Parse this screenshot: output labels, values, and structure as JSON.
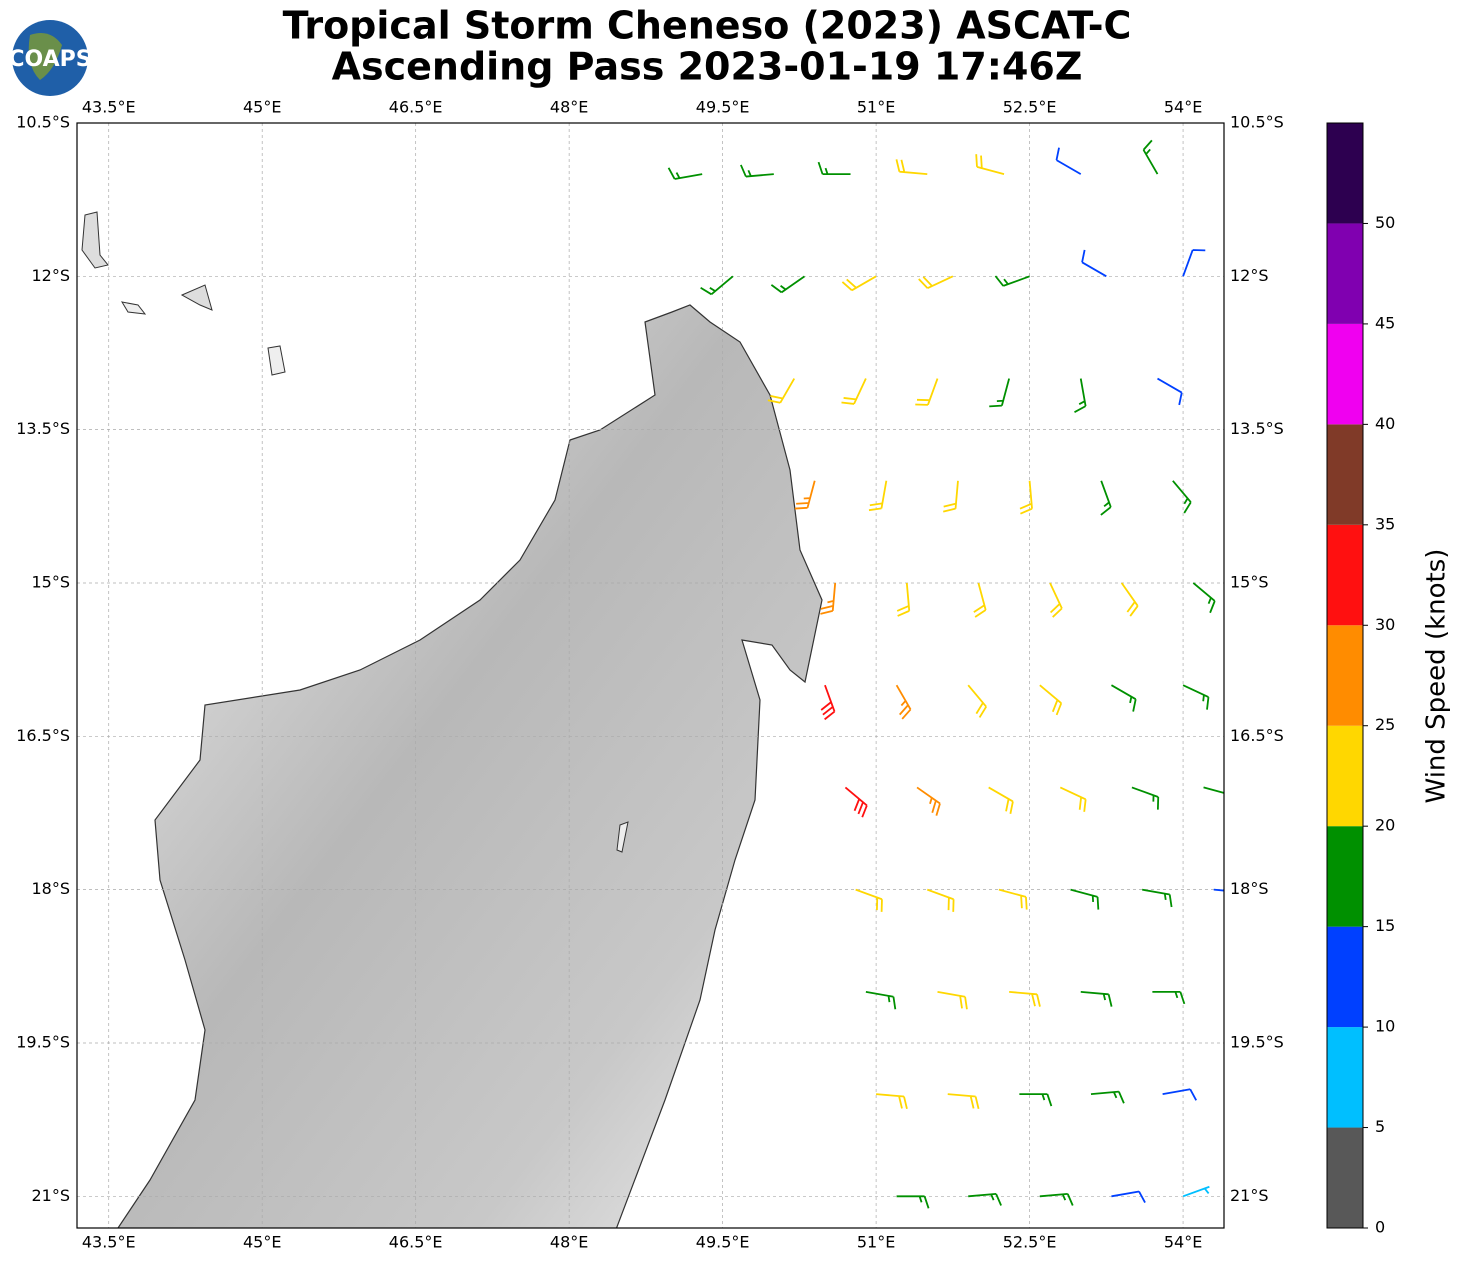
{
  "chart_data": {
    "type": "barbs",
    "logo": "COAPS",
    "title": [
      "Tropical Storm Cheneso (2023) ASCAT-C",
      "Ascending Pass 2023-01-19 17:46Z"
    ],
    "xlim": [
      43.19,
      54.4
    ],
    "ylim": [
      -21.31,
      -10.5
    ],
    "grid": true,
    "xticks": [
      {
        "value": 43.5,
        "label": "43.5°E"
      },
      {
        "value": 45,
        "label": "45°E"
      },
      {
        "value": 46.5,
        "label": "46.5°E"
      },
      {
        "value": 48,
        "label": "48°E"
      },
      {
        "value": 49.5,
        "label": "49.5°E"
      },
      {
        "value": 51,
        "label": "51°E"
      },
      {
        "value": 52.5,
        "label": "52.5°E"
      },
      {
        "value": 54,
        "label": "54°E"
      }
    ],
    "yticks": [
      {
        "value": -10.5,
        "label": "10.5°S"
      },
      {
        "value": -12,
        "label": "12°S"
      },
      {
        "value": -13.5,
        "label": "13.5°S"
      },
      {
        "value": -15,
        "label": "15°S"
      },
      {
        "value": -16.5,
        "label": "16.5°S"
      },
      {
        "value": -18,
        "label": "18°S"
      },
      {
        "value": -19.5,
        "label": "19.5°S"
      },
      {
        "value": -21,
        "label": "21°S"
      }
    ],
    "barbs": {
      "lon": [
        49.3,
        50.0,
        50.75,
        51.5,
        52.25,
        53.0,
        53.75,
        49.6,
        50.3,
        51.0,
        51.75,
        52.5,
        53.25,
        54.0,
        50.2,
        50.9,
        51.6,
        52.3,
        53.0,
        53.75,
        50.4,
        51.1,
        51.8,
        52.5,
        53.2,
        53.9,
        50.6,
        51.3,
        52.0,
        52.7,
        53.4,
        54.1,
        50.5,
        51.2,
        51.9,
        52.6,
        53.3,
        54.0,
        50.7,
        51.4,
        52.1,
        52.8,
        53.5,
        54.2,
        50.8,
        51.5,
        52.2,
        52.9,
        53.6,
        54.3,
        50.9,
        51.6,
        52.3,
        53.0,
        53.7,
        51.0,
        51.7,
        52.4,
        53.1,
        53.8,
        51.2,
        51.9,
        52.6,
        53.3,
        54.0
      ],
      "lat": [
        -11,
        -11,
        -11,
        -11,
        -11,
        -11,
        -11,
        -12,
        -12,
        -12,
        -12,
        -12,
        -12,
        -12,
        -13,
        -13,
        -13,
        -13,
        -13,
        -13,
        -14,
        -14,
        -14,
        -14,
        -14,
        -14,
        -15,
        -15,
        -15,
        -15,
        -15,
        -15,
        -16,
        -16,
        -16,
        -16,
        -16,
        -16,
        -17,
        -17,
        -17,
        -17,
        -17,
        -17,
        -18,
        -18,
        -18,
        -18,
        -18,
        -18,
        -19,
        -19,
        -19,
        -19,
        -19,
        -20,
        -20,
        -20,
        -20,
        -20,
        -21,
        -21,
        -21,
        -21,
        -21
      ],
      "speed": [
        17,
        18,
        19,
        21,
        20,
        14,
        17,
        18,
        19,
        21,
        22,
        18,
        12,
        13,
        20,
        22,
        21,
        19,
        17,
        14,
        26,
        23,
        22,
        21,
        19,
        18,
        27,
        24,
        22,
        21,
        20,
        18,
        31,
        27,
        24,
        22,
        19,
        18,
        32,
        27,
        23,
        21,
        19,
        17,
        22,
        22,
        21,
        19,
        18,
        14,
        17,
        22,
        21,
        18,
        16,
        22,
        21,
        19,
        16,
        12,
        17,
        17,
        18,
        13,
        8
      ],
      "direction": [
        260,
        265,
        270,
        275,
        285,
        300,
        330,
        230,
        235,
        240,
        245,
        250,
        300,
        20,
        210,
        205,
        200,
        195,
        170,
        120,
        195,
        190,
        185,
        175,
        160,
        140,
        185,
        175,
        165,
        155,
        145,
        130,
        160,
        150,
        140,
        130,
        120,
        115,
        130,
        125,
        120,
        115,
        110,
        105,
        110,
        110,
        105,
        105,
        100,
        95,
        100,
        100,
        95,
        95,
        90,
        95,
        95,
        90,
        85,
        80,
        90,
        85,
        85,
        80,
        70
      ]
    },
    "colorbar": {
      "label": "Wind Speed (knots)",
      "lim": [
        0,
        55
      ],
      "ticks": [
        0,
        5,
        10,
        15,
        20,
        25,
        30,
        35,
        40,
        45,
        50
      ],
      "bounds": [
        0,
        5,
        10,
        15,
        20,
        25,
        30,
        35,
        40,
        45,
        50,
        55
      ],
      "colors": [
        "#585858",
        "#00bfff",
        "#0040ff",
        "#009000",
        "#ffd700",
        "#ff8c00",
        "#ff1010",
        "#803a28",
        "#f000f0",
        "#8000b0",
        "#2d0050"
      ]
    }
  }
}
